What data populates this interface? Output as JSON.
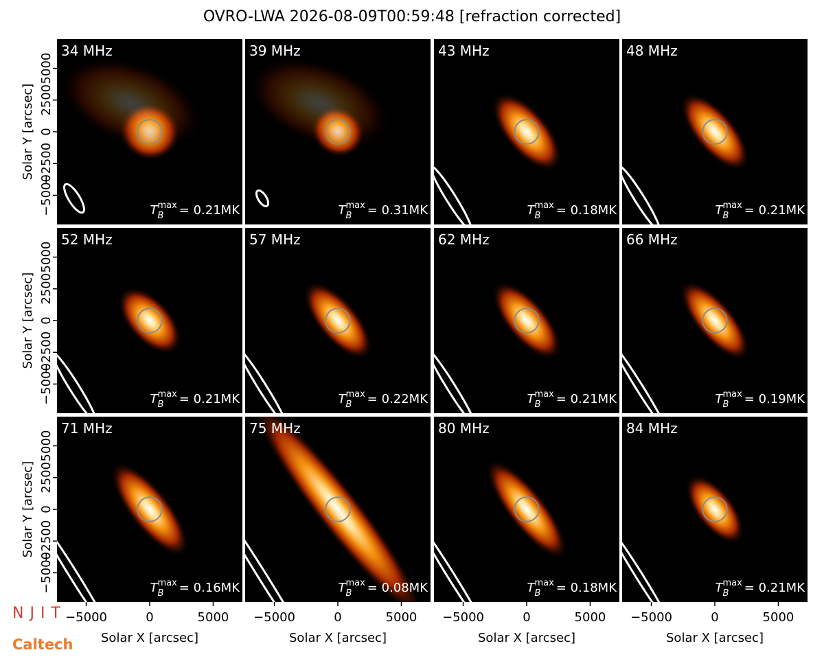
{
  "chart_data": {
    "type": "image_grid",
    "title": "OVRO-LWA 2026-08-09T00:59:48 [refraction corrected]",
    "xlabel": "Solar X [arcsec]",
    "ylabel": "Solar Y [arcsec]",
    "xlim": [
      -7300,
      7300
    ],
    "ylim": [
      -7300,
      7300
    ],
    "xticks": [
      {
        "value": -5000,
        "label": "−5000"
      },
      0,
      5000
    ],
    "yticks": [
      {
        "value": -5000,
        "label": "−5000"
      },
      {
        "value": -2500,
        "label": "−2500"
      },
      0,
      2500,
      5000
    ],
    "tb_symbol": "T",
    "tb_sub": "B",
    "tb_sup": "max",
    "panels": [
      {
        "label": "34 MHz",
        "tb_max": "= 0.21MK"
      },
      {
        "label": "39 MHz",
        "tb_max": "= 0.31MK"
      },
      {
        "label": "43 MHz",
        "tb_max": "= 0.18MK"
      },
      {
        "label": "48 MHz",
        "tb_max": "= 0.21MK"
      },
      {
        "label": "52 MHz",
        "tb_max": "= 0.21MK"
      },
      {
        "label": "57 MHz",
        "tb_max": "= 0.22MK"
      },
      {
        "label": "62 MHz",
        "tb_max": "= 0.21MK"
      },
      {
        "label": "66 MHz",
        "tb_max": "= 0.19MK"
      },
      {
        "label": "71 MHz",
        "tb_max": "= 0.16MK"
      },
      {
        "label": "75 MHz",
        "tb_max": "= 0.08MK"
      },
      {
        "label": "80 MHz",
        "tb_max": "= 0.18MK"
      },
      {
        "label": "84 MHz",
        "tb_max": "= 0.21MK"
      }
    ]
  },
  "logos": [
    "NJIT",
    "Caltech"
  ]
}
